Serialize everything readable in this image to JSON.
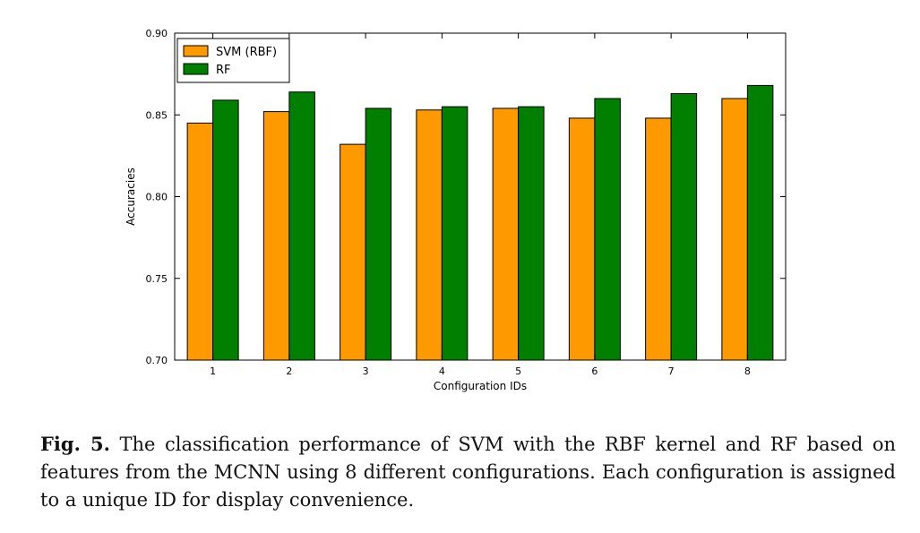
{
  "chart_data": {
    "type": "bar",
    "categories": [
      "1",
      "2",
      "3",
      "4",
      "5",
      "6",
      "7",
      "8"
    ],
    "series": [
      {
        "name": "SVM (RBF)",
        "color": "#ff9900",
        "values": [
          0.845,
          0.852,
          0.832,
          0.853,
          0.854,
          0.848,
          0.848,
          0.86
        ]
      },
      {
        "name": "RF",
        "color": "#007f00",
        "values": [
          0.859,
          0.864,
          0.854,
          0.855,
          0.855,
          0.86,
          0.863,
          0.868
        ]
      }
    ],
    "title": "",
    "xlabel": "Configuration IDs",
    "ylabel": "Accuracies",
    "ylim": [
      0.7,
      0.9
    ],
    "yticks": [
      "0.70",
      "0.75",
      "0.80",
      "0.85",
      "0.90"
    ],
    "grid": false,
    "legend": "top-left"
  },
  "caption": {
    "label": "Fig. 5.",
    "text": "The classification performance of SVM with the RBF kernel and RF based on features from the MCNN using 8 different configurations. Each configuration is assigned to a unique ID for display convenience."
  }
}
